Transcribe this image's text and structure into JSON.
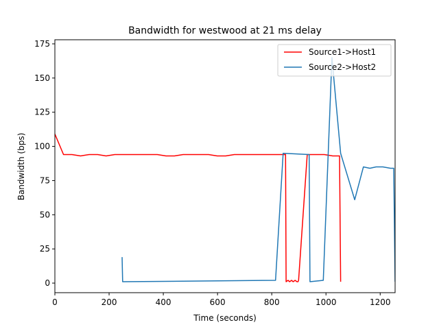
{
  "chart_data": {
    "type": "line",
    "title": "Bandwidth for westwood at 21 ms delay",
    "xlabel": "Time (seconds)",
    "ylabel": "Bandwidth (bps)",
    "xlim": [
      0,
      1255
    ],
    "ylim": [
      -7,
      178
    ],
    "xticks": [
      0,
      200,
      400,
      600,
      800,
      1000,
      1200
    ],
    "yticks": [
      0,
      25,
      50,
      75,
      100,
      125,
      150,
      175
    ],
    "grid": false,
    "legend_position": "top-right",
    "series": [
      {
        "name": "Source1->Host1",
        "color": "#ff0000",
        "points": [
          [
            0,
            109
          ],
          [
            32,
            94
          ],
          [
            63,
            94
          ],
          [
            95,
            93
          ],
          [
            126,
            94
          ],
          [
            158,
            94
          ],
          [
            189,
            93
          ],
          [
            221,
            94
          ],
          [
            252,
            94
          ],
          [
            284,
            94
          ],
          [
            315,
            94
          ],
          [
            347,
            94
          ],
          [
            378,
            94
          ],
          [
            410,
            93
          ],
          [
            441,
            93
          ],
          [
            473,
            94
          ],
          [
            504,
            94
          ],
          [
            536,
            94
          ],
          [
            567,
            94
          ],
          [
            599,
            93
          ],
          [
            630,
            93
          ],
          [
            662,
            94
          ],
          [
            693,
            94
          ],
          [
            725,
            94
          ],
          [
            756,
            94
          ],
          [
            788,
            94
          ],
          [
            819,
            94
          ],
          [
            845,
            94
          ],
          [
            851,
            94
          ],
          [
            853,
            1
          ],
          [
            860,
            2
          ],
          [
            866,
            1
          ],
          [
            873,
            2
          ],
          [
            879,
            1
          ],
          [
            886,
            2
          ],
          [
            893,
            1
          ],
          [
            897,
            1
          ],
          [
            899,
            2
          ],
          [
            931,
            94
          ],
          [
            962,
            94
          ],
          [
            994,
            94
          ],
          [
            1025,
            93
          ],
          [
            1050,
            93
          ],
          [
            1054,
            1
          ]
        ]
      },
      {
        "name": "Source2->Host2",
        "color": "#1f77b4",
        "points": [
          [
            248,
            19
          ],
          [
            250,
            1
          ],
          [
            814,
            2
          ],
          [
            842,
            95
          ],
          [
            938,
            94
          ],
          [
            941,
            1
          ],
          [
            990,
            2
          ],
          [
            1022,
            165
          ],
          [
            1054,
            95
          ],
          [
            1106,
            61
          ],
          [
            1138,
            85
          ],
          [
            1162,
            84
          ],
          [
            1185,
            85
          ],
          [
            1210,
            85
          ],
          [
            1238,
            84
          ],
          [
            1250,
            84
          ],
          [
            1255,
            1
          ]
        ]
      }
    ]
  }
}
